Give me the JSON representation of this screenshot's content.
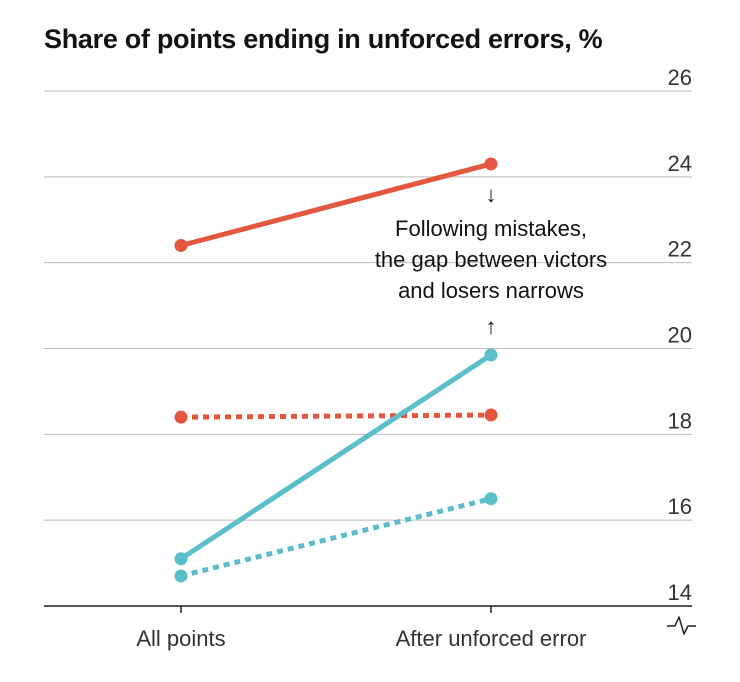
{
  "chart_data": {
    "type": "line",
    "title": "Share of points ending in unforced errors, %",
    "categories": [
      "All points",
      "After unforced error"
    ],
    "ylim": [
      14,
      26
    ],
    "yticks": [
      14,
      16,
      18,
      20,
      22,
      24,
      26
    ],
    "y_axis_side": "right",
    "y_axis_break": true,
    "grid": true,
    "series": [
      {
        "color": "#e3573e",
        "style": "solid",
        "values": [
          22.4,
          24.3
        ]
      },
      {
        "color": "#e3573e",
        "style": "dotted",
        "values": [
          18.4,
          18.45
        ]
      },
      {
        "color": "#5bbecb",
        "style": "solid",
        "values": [
          15.1,
          19.85
        ]
      },
      {
        "color": "#5bbecb",
        "style": "dotted",
        "values": [
          14.7,
          16.5
        ]
      }
    ],
    "annotation": {
      "lines": [
        "Following mistakes,",
        "the gap between victors",
        "and losers narrows"
      ],
      "arrow_down": "↓",
      "arrow_up": "↑"
    }
  }
}
